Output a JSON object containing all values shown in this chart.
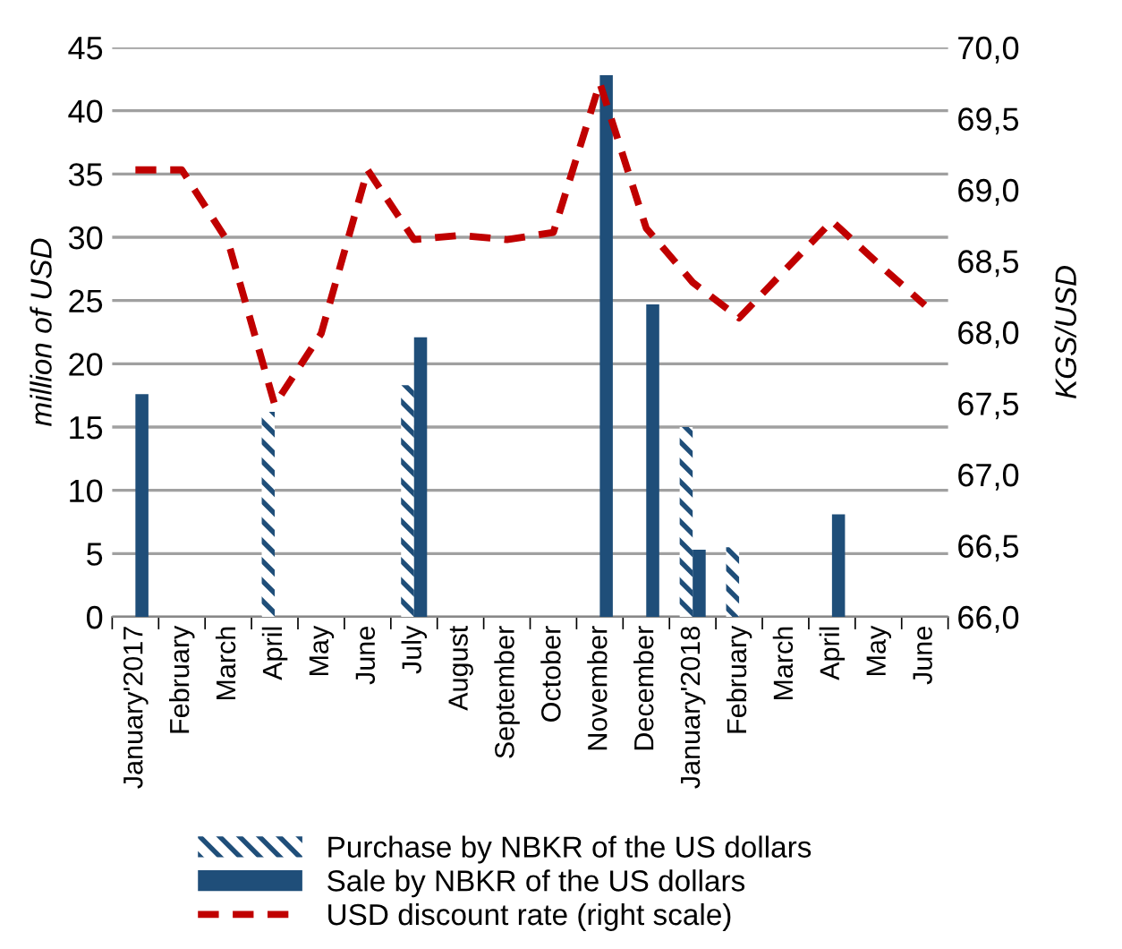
{
  "chart_data": {
    "type": "bar",
    "categories": [
      "January'2017",
      "February",
      "March",
      "April",
      "May",
      "June",
      "July",
      "August",
      "September",
      "October",
      "November",
      "December",
      "January'2018",
      "February",
      "March",
      "April",
      "May",
      "June"
    ],
    "series": [
      {
        "name": "Purchase by NBKR of the US dollars",
        "color": "#1f4e79",
        "values": [
          null,
          null,
          null,
          16.2,
          null,
          null,
          18.3,
          null,
          null,
          null,
          null,
          null,
          15.0,
          5.5,
          null,
          null,
          null,
          null
        ]
      },
      {
        "name": "Sale by NBKR of the US dollars",
        "color": "#1f4e79",
        "values": [
          17.6,
          null,
          null,
          null,
          null,
          null,
          22.1,
          null,
          null,
          null,
          42.8,
          24.7,
          5.3,
          null,
          null,
          8.1,
          null,
          null
        ]
      },
      {
        "name": "USD discount rate (right scale)",
        "type": "line",
        "axis": "y2",
        "color": "#c00000",
        "line_style": "dashed",
        "values": [
          69.14,
          69.14,
          68.63,
          67.49,
          67.99,
          69.14,
          68.65,
          68.68,
          68.65,
          68.7,
          69.75,
          68.73,
          68.35,
          68.1,
          68.44,
          68.78,
          68.48,
          68.19
        ]
      }
    ],
    "ylabel": "million of USD",
    "y2label": "KGS/USD",
    "ylim": [
      0,
      45
    ],
    "yticks": [
      0,
      5,
      10,
      15,
      20,
      25,
      30,
      35,
      40,
      45
    ],
    "y2lim": [
      66,
      70
    ],
    "y2ticks": [
      {
        "value": 66,
        "label": "66,0"
      },
      {
        "value": 66.5,
        "label": "66,5"
      },
      {
        "value": 67,
        "label": "67,0"
      },
      {
        "value": 67.5,
        "label": "67,5"
      },
      {
        "value": 68,
        "label": "68,0"
      },
      {
        "value": 68.5,
        "label": "68,5"
      },
      {
        "value": 69,
        "label": "69,0"
      },
      {
        "value": 69.5,
        "label": "69,5"
      },
      {
        "value": 70,
        "label": "70,0"
      }
    ],
    "grid": "y",
    "legend": "bottom"
  }
}
